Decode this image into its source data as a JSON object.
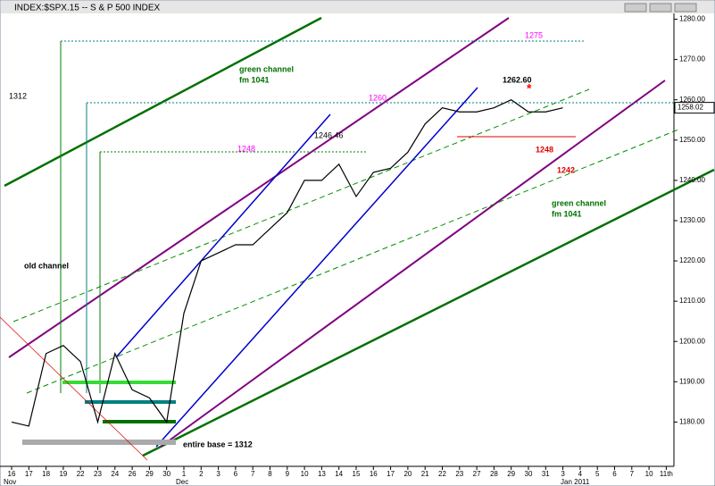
{
  "chart_data": {
    "type": "line",
    "title": "INDEX:$SPX.15 -- S & P 500 INDEX",
    "categories": [
      "16",
      "17",
      "18",
      "19",
      "22",
      "23",
      "24",
      "26",
      "29",
      "30",
      "1",
      "2",
      "3",
      "6",
      "7",
      "8",
      "9",
      "10",
      "13",
      "14",
      "15",
      "16",
      "17",
      "20",
      "21",
      "22",
      "23",
      "27",
      "28",
      "29",
      "30",
      "31",
      "3",
      "4",
      "5",
      "6",
      "7",
      "10",
      "11th"
    ],
    "months": [
      "Nov",
      "Dec",
      "Jan 2011"
    ],
    "series": [
      {
        "color": "#000000",
        "values": [
          1180,
          1179,
          1197,
          1199,
          1195,
          1180,
          1197,
          1188,
          1186,
          1180,
          1207,
          1220,
          1222,
          1224,
          1224,
          1228,
          1232,
          1240,
          1240,
          1244,
          1236,
          1242,
          1243,
          1247,
          1254,
          1258,
          1257,
          1257,
          1258,
          1260,
          1257,
          1257,
          1258,
          null,
          null,
          null,
          null,
          null,
          null
        ]
      }
    ],
    "ylim": [
      1169,
      1283
    ],
    "yticks": [
      {
        "value": 1180,
        "label": "1180.00"
      },
      {
        "value": 1190,
        "label": "1190.00"
      },
      {
        "value": 1200,
        "label": "1200.00"
      },
      {
        "value": 1210,
        "label": "1210.00"
      },
      {
        "value": 1220,
        "label": "1220.00"
      },
      {
        "value": 1230,
        "label": "1230.00"
      },
      {
        "value": 1240,
        "label": "1240.00"
      },
      {
        "value": 1250,
        "label": "1250.00"
      },
      {
        "value": 1260,
        "label": "1260.00"
      },
      {
        "value": 1270,
        "label": "1270.00"
      },
      {
        "value": 1280,
        "label": "1280.00"
      }
    ],
    "last_price": 1258.02,
    "annotations": [
      "1275",
      "green channel",
      "fm 1041",
      "1312",
      "1260",
      "1262.60",
      "1248",
      "1246.46",
      "1248",
      "1242",
      "green channel",
      "fm 1041",
      "old channel",
      "entire base = 1312"
    ]
  }
}
